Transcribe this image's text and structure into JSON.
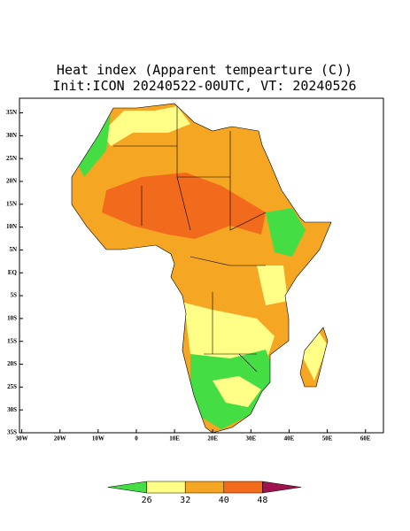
{
  "title": "Heat index (Apparent tempearture (C))",
  "subtitle": "Init:ICON 20240522-00UTC, VT: 20240526",
  "map": {
    "xlim": [
      -30.6,
      64.7
    ],
    "ylim": [
      -35,
      38.2
    ],
    "xticks": [
      {
        "value": -30,
        "label": "30W"
      },
      {
        "value": -20,
        "label": "20W"
      },
      {
        "value": -10,
        "label": "10W"
      },
      0,
      {
        "value": 10,
        "label": "10E"
      },
      {
        "value": 20,
        "label": "20E"
      },
      {
        "value": 30,
        "label": "30E"
      },
      {
        "value": 40,
        "label": "40E"
      },
      {
        "value": 50,
        "label": "50E"
      },
      {
        "value": 60,
        "label": "60E"
      }
    ],
    "yticks": [
      {
        "value": 35,
        "label": "35N"
      },
      {
        "value": 30,
        "label": "30N"
      },
      {
        "value": 25,
        "label": "25N"
      },
      {
        "value": 20,
        "label": "20N"
      },
      {
        "value": 15,
        "label": "15N"
      },
      {
        "value": 10,
        "label": "10N"
      },
      {
        "value": 5,
        "label": "5N"
      },
      {
        "value": 0,
        "label": "EQ"
      },
      {
        "value": -5,
        "label": "5S"
      },
      {
        "value": -10,
        "label": "10S"
      },
      {
        "value": -15,
        "label": "15S"
      },
      {
        "value": -20,
        "label": "20S"
      },
      {
        "value": -25,
        "label": "25S"
      },
      {
        "value": -30,
        "label": "30S"
      },
      {
        "value": -35,
        "label": "35S"
      }
    ]
  },
  "colorbar": {
    "colors": [
      "#44dd44",
      "#ffff88",
      "#f5a623",
      "#f26a1b",
      "#a0124e"
    ],
    "ticks": [
      26,
      32,
      40,
      48
    ]
  }
}
